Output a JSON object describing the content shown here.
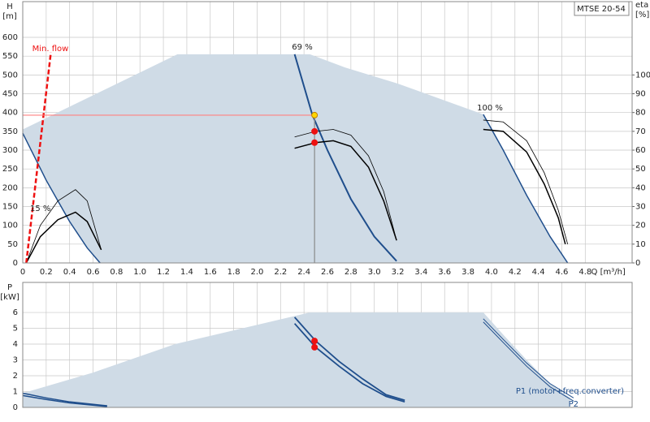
{
  "header": {
    "model": "MTSE 20-54"
  },
  "chart_data": [
    {
      "type": "line",
      "y_label": "H",
      "y_unit": "[m]",
      "y2_label": "eta",
      "y2_unit": "[%]",
      "x_label": "Q [m³/h]",
      "xlim": [
        0,
        5.2
      ],
      "xticks": [
        0,
        0.2,
        0.4,
        0.6,
        0.8,
        {
          "value": 1,
          "label": "1.0"
        },
        1.2,
        1.4,
        1.6,
        1.8,
        {
          "value": 2,
          "label": "2.0"
        },
        2.2,
        2.4,
        2.6,
        2.8,
        {
          "value": 3,
          "label": "3.0"
        },
        3.2,
        3.4,
        3.6,
        3.8,
        {
          "value": 4,
          "label": "4.0"
        },
        4.2,
        4.4,
        4.6,
        4.8
      ],
      "ylim": [
        0,
        695
      ],
      "yticks": [
        0,
        50,
        100,
        150,
        200,
        250,
        300,
        350,
        400,
        450,
        500,
        550,
        600
      ],
      "y2lim": [
        0,
        139
      ],
      "y2ticks": [
        0,
        10,
        20,
        30,
        40,
        50,
        60,
        70,
        80,
        90,
        100
      ],
      "grid": true,
      "series": [
        {
          "type": "area",
          "color": "#cfdbe6",
          "x": [
            0,
            1.32,
            2.45,
            2.75,
            3.2,
            3.93,
            4.1,
            4.3,
            4.5,
            4.65,
            0.66,
            0.55,
            0.4,
            0.2,
            0
          ],
          "values": [
            355,
            555,
            555,
            520,
            477,
            395,
            300,
            180,
            70,
            0,
            0,
            40,
            110,
            220,
            345
          ]
        },
        {
          "type": "line",
          "label": "15 %",
          "color": "#1f4e8c",
          "line_width": 1.5,
          "x": [
            0,
            0.2,
            0.4,
            0.55,
            0.66
          ],
          "values": [
            345,
            220,
            110,
            40,
            0
          ]
        },
        {
          "type": "line",
          "label": "69 %",
          "color": "#1f4e8c",
          "line_width": 2,
          "x": [
            2.32,
            2.47,
            2.6,
            2.8,
            3.0,
            3.19
          ],
          "values": [
            555,
            395,
            300,
            170,
            70,
            5
          ]
        },
        {
          "type": "line",
          "label": "100 %",
          "color": "#1f4e8c",
          "line_width": 1.5,
          "x": [
            3.93,
            4.1,
            4.3,
            4.5,
            4.65
          ],
          "values": [
            395,
            300,
            180,
            70,
            0
          ]
        },
        {
          "type": "line",
          "axis": "y2",
          "color": "#000000",
          "line_width": 0.8,
          "x": [
            0.03,
            0.15,
            0.3,
            0.45,
            0.55,
            0.67
          ],
          "values": [
            0,
            20,
            33,
            39,
            33,
            7
          ]
        },
        {
          "type": "line",
          "axis": "y2",
          "color": "#000000",
          "line_width": 1.5,
          "x": [
            0.03,
            0.15,
            0.3,
            0.45,
            0.55,
            0.67
          ],
          "values": [
            0,
            14,
            23,
            27,
            22,
            7
          ]
        },
        {
          "type": "line",
          "axis": "y2",
          "color": "#000000",
          "line_width": 0.8,
          "x": [
            2.32,
            2.5,
            2.65,
            2.8,
            2.95,
            3.08,
            3.19
          ],
          "values": [
            67,
            70,
            71,
            68,
            57,
            38,
            12
          ]
        },
        {
          "type": "line",
          "axis": "y2",
          "color": "#000000",
          "line_width": 1.5,
          "x": [
            2.32,
            2.5,
            2.65,
            2.8,
            2.95,
            3.08,
            3.19
          ],
          "values": [
            61,
            64,
            65,
            62,
            51,
            33,
            12
          ]
        },
        {
          "type": "line",
          "axis": "y2",
          "color": "#000000",
          "line_width": 0.8,
          "x": [
            3.93,
            4.1,
            4.3,
            4.45,
            4.57,
            4.65
          ],
          "values": [
            76,
            75,
            65,
            48,
            28,
            10
          ]
        },
        {
          "type": "line",
          "axis": "y2",
          "color": "#000000",
          "line_width": 1.5,
          "x": [
            3.93,
            4.1,
            4.3,
            4.45,
            4.57,
            4.63
          ],
          "values": [
            71,
            70,
            59,
            42,
            24,
            10
          ]
        },
        {
          "type": "line",
          "label": "Min. flow",
          "color": "#ee1111",
          "line_width": 2.5,
          "dash": true,
          "x": [
            0.03,
            0.24
          ],
          "values": [
            0,
            560
          ]
        },
        {
          "type": "line",
          "color": "#ff8080",
          "line_width": 1.2,
          "x": [
            0,
            2.49
          ],
          "values": [
            393,
            393
          ]
        },
        {
          "type": "line",
          "color": "#8a8a8a",
          "line_width": 1.2,
          "x": [
            2.49,
            2.49
          ],
          "values": [
            393,
            0
          ]
        },
        {
          "type": "points",
          "axis": "y2",
          "color": "#ee1111",
          "x": [
            2.49,
            2.49
          ],
          "values": [
            70,
            64
          ]
        },
        {
          "type": "points",
          "color": "#ffd700",
          "x": [
            2.49
          ],
          "values": [
            393
          ]
        }
      ]
    },
    {
      "type": "line",
      "y_label": "P",
      "y_unit": "[kW]",
      "xlim": [
        0,
        5.2
      ],
      "xticks": [
        0,
        0.2,
        0.4,
        0.6,
        0.8,
        1,
        1.2,
        1.4,
        1.6,
        1.8,
        2,
        2.2,
        2.4,
        2.6,
        2.8,
        3,
        3.2,
        3.4,
        3.6,
        3.8,
        4,
        4.2,
        4.4,
        4.6,
        4.8
      ],
      "ylim": [
        0,
        7.9
      ],
      "yticks": [
        0,
        1,
        2,
        3,
        4,
        5,
        6
      ],
      "grid": true,
      "series": [
        {
          "type": "area",
          "color": "#cfdbe6",
          "x": [
            0,
            0.6,
            1.3,
            2.45,
            3.93,
            4.1,
            4.3,
            4.5,
            4.67,
            4.67,
            0
          ],
          "values": [
            0.9,
            2.2,
            4.0,
            6.0,
            6.0,
            4.6,
            3.0,
            1.5,
            0.6,
            0,
            0
          ]
        },
        {
          "type": "line",
          "color": "#1f4e8c",
          "line_width": 1.5,
          "x": [
            0,
            0.2,
            0.4,
            0.72
          ],
          "values": [
            0.9,
            0.6,
            0.35,
            0.1
          ]
        },
        {
          "type": "line",
          "color": "#1f4e8c",
          "line_width": 1.5,
          "x": [
            0,
            0.2,
            0.4,
            0.72
          ],
          "values": [
            0.75,
            0.5,
            0.28,
            0.05
          ]
        },
        {
          "type": "line",
          "color": "#1f4e8c",
          "line_width": 1.8,
          "x": [
            2.32,
            2.5,
            2.7,
            2.9,
            3.1,
            3.26
          ],
          "values": [
            5.7,
            4.2,
            2.9,
            1.8,
            0.8,
            0.45
          ]
        },
        {
          "type": "line",
          "color": "#1f4e8c",
          "line_width": 1.8,
          "x": [
            2.32,
            2.5,
            2.7,
            2.9,
            3.1,
            3.26
          ],
          "values": [
            5.3,
            3.8,
            2.6,
            1.5,
            0.7,
            0.35
          ]
        },
        {
          "type": "line",
          "label": "P1 (motor+freq.converter)",
          "color": "#1f4e8c",
          "line_width": 1,
          "x": [
            3.93,
            4.1,
            4.3,
            4.5,
            4.7
          ],
          "values": [
            5.6,
            4.3,
            2.8,
            1.5,
            0.6
          ]
        },
        {
          "type": "line",
          "label": "P2",
          "color": "#1f4e8c",
          "line_width": 1,
          "x": [
            3.93,
            4.1,
            4.3,
            4.5,
            4.7
          ],
          "values": [
            5.4,
            4.1,
            2.6,
            1.3,
            0.4
          ]
        },
        {
          "type": "points",
          "color": "#ee1111",
          "x": [
            2.49,
            2.49
          ],
          "values": [
            4.2,
            3.8
          ]
        }
      ]
    }
  ]
}
